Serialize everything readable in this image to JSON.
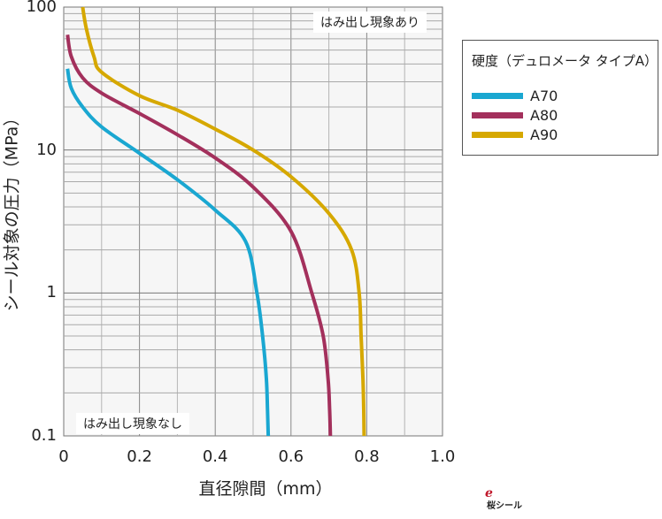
{
  "chart_data": {
    "type": "line",
    "xlabel": "直径隙間（mm）",
    "ylabel": "シール対象の圧力（MPa）",
    "xlim": [
      0,
      1.0
    ],
    "ylim": [
      0.1,
      100
    ],
    "yscale": "log",
    "xticks": [
      "0",
      "0.2",
      "0.4",
      "0.6",
      "0.8",
      "1.0"
    ],
    "yticks": [
      "0.1",
      "1",
      "10",
      "100"
    ],
    "grid": true,
    "legend": {
      "title": "硬度（デュロメータ タイプA）",
      "placement": "right"
    },
    "annotations": {
      "top": "はみ出し現象あり",
      "bottom": "はみ出し現象なし"
    },
    "series": [
      {
        "name": "A70",
        "color": "#1aa7d1",
        "x": [
          0.01,
          0.02,
          0.05,
          0.1,
          0.2,
          0.3,
          0.4,
          0.48,
          0.51,
          0.525,
          0.535,
          0.538,
          0.54
        ],
        "y": [
          37,
          27,
          20,
          14.5,
          9.5,
          6.2,
          3.8,
          2.3,
          1.0,
          0.5,
          0.25,
          0.15,
          0.1
        ]
      },
      {
        "name": "A80",
        "color": "#a3305c",
        "x": [
          0.01,
          0.02,
          0.05,
          0.1,
          0.2,
          0.3,
          0.4,
          0.5,
          0.6,
          0.655,
          0.685,
          0.698,
          0.702,
          0.704
        ],
        "y": [
          64,
          45,
          32,
          25,
          18,
          12.8,
          8.8,
          5.5,
          2.7,
          1.0,
          0.5,
          0.25,
          0.15,
          0.1
        ]
      },
      {
        "name": "A90",
        "color": "#d6a800",
        "x": [
          0.05,
          0.06,
          0.08,
          0.1,
          0.2,
          0.3,
          0.4,
          0.5,
          0.6,
          0.7,
          0.76,
          0.78,
          0.785,
          0.79,
          0.792,
          0.793
        ],
        "y": [
          100,
          70,
          45,
          35,
          24,
          19,
          14,
          10,
          6.5,
          3.6,
          2.0,
          1.0,
          0.5,
          0.25,
          0.15,
          0.1
        ]
      }
    ]
  },
  "logo": {
    "mark": "e",
    "text": "桜シール"
  }
}
